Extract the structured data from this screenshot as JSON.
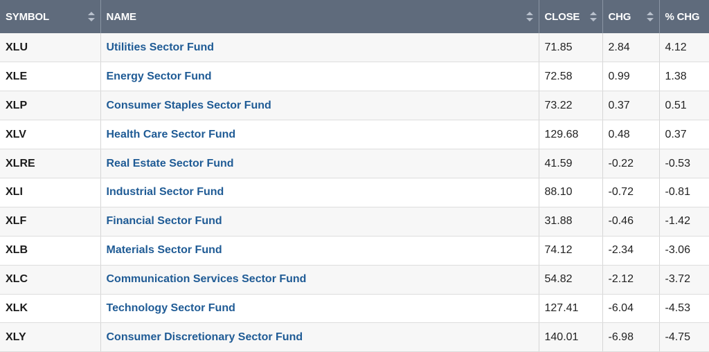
{
  "columns": {
    "symbol": "SYMBOL",
    "name": "NAME",
    "close": "CLOSE",
    "chg": "CHG",
    "pct_chg": "% CHG"
  },
  "rows": [
    {
      "symbol": "XLU",
      "name": "Utilities Sector Fund",
      "close": "71.85",
      "chg": "2.84",
      "pct_chg": "4.12"
    },
    {
      "symbol": "XLE",
      "name": "Energy Sector Fund",
      "close": "72.58",
      "chg": "0.99",
      "pct_chg": "1.38"
    },
    {
      "symbol": "XLP",
      "name": "Consumer Staples Sector Fund",
      "close": "73.22",
      "chg": "0.37",
      "pct_chg": "0.51"
    },
    {
      "symbol": "XLV",
      "name": "Health Care Sector Fund",
      "close": "129.68",
      "chg": "0.48",
      "pct_chg": "0.37"
    },
    {
      "symbol": "XLRE",
      "name": "Real Estate Sector Fund",
      "close": "41.59",
      "chg": "-0.22",
      "pct_chg": "-0.53"
    },
    {
      "symbol": "XLI",
      "name": "Industrial Sector Fund",
      "close": "88.10",
      "chg": "-0.72",
      "pct_chg": "-0.81"
    },
    {
      "symbol": "XLF",
      "name": "Financial Sector Fund",
      "close": "31.88",
      "chg": "-0.46",
      "pct_chg": "-1.42"
    },
    {
      "symbol": "XLB",
      "name": "Materials Sector Fund",
      "close": "74.12",
      "chg": "-2.34",
      "pct_chg": "-3.06"
    },
    {
      "symbol": "XLC",
      "name": "Communication Services Sector Fund",
      "close": "54.82",
      "chg": "-2.12",
      "pct_chg": "-3.72"
    },
    {
      "symbol": "XLK",
      "name": "Technology Sector Fund",
      "close": "127.41",
      "chg": "-6.04",
      "pct_chg": "-4.53"
    },
    {
      "symbol": "XLY",
      "name": "Consumer Discretionary Sector Fund",
      "close": "140.01",
      "chg": "-6.98",
      "pct_chg": "-4.75"
    }
  ],
  "icons": {
    "sort": "sort-arrows-icon"
  },
  "colors": {
    "header_bg": "#5f6b7c",
    "link": "#1f5b95"
  }
}
